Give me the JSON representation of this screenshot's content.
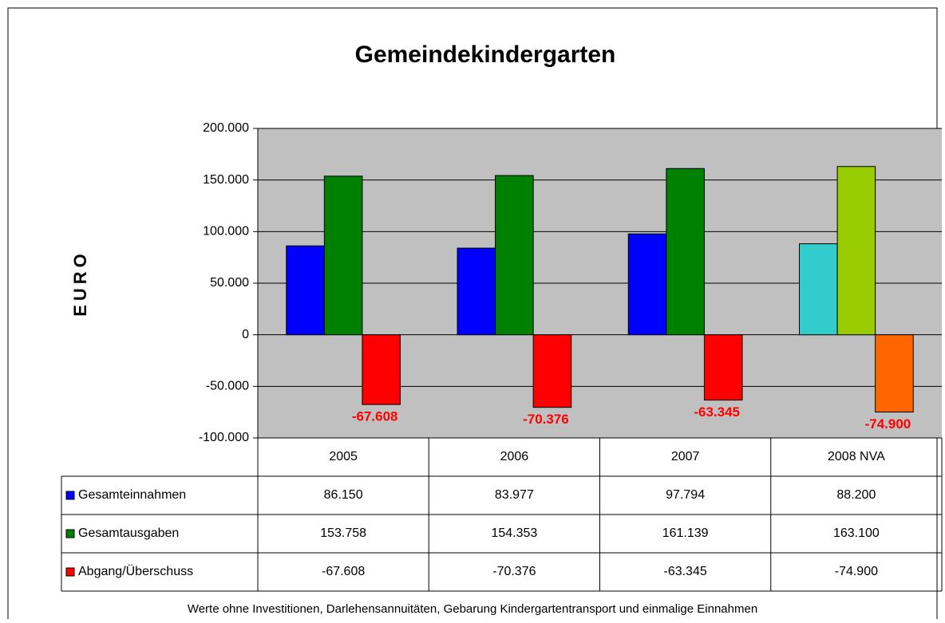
{
  "chart_data": {
    "type": "bar",
    "title": "Gemeindekindergarten",
    "y_label": "EURO",
    "footnote": "Werte ohne Investitionen, Darlehensannuitäten, Gebarung Kindergartentransport und einmalige Einnahmen",
    "categories": [
      "2005",
      "2006",
      "2007",
      "2008 NVA"
    ],
    "series": [
      {
        "name": "Gesamteinnahmen",
        "color": "#0000ff",
        "colors": [
          "#0000ff",
          "#0000ff",
          "#0000ff",
          "#33cccc"
        ],
        "values": [
          86150,
          83977,
          97794,
          88200
        ],
        "value_labels": [
          "86.150",
          "83.977",
          "97.794",
          "88.200"
        ]
      },
      {
        "name": "Gesamtausgaben",
        "color": "#008000",
        "colors": [
          "#008000",
          "#008000",
          "#008000",
          "#99cc00"
        ],
        "values": [
          153758,
          154353,
          161139,
          163100
        ],
        "value_labels": [
          "153.758",
          "154.353",
          "161.139",
          "163.100"
        ]
      },
      {
        "name": "Abgang/Überschuss",
        "color": "#ff0000",
        "colors": [
          "#ff0000",
          "#ff0000",
          "#ff0000",
          "#ff6600"
        ],
        "values": [
          -67608,
          -70376,
          -63345,
          -74900
        ],
        "value_labels": [
          "-67.608",
          "-70.376",
          "-63.345",
          "-74.900"
        ],
        "data_labels": true
      }
    ],
    "ylim": [
      -100000,
      200000
    ],
    "yticks": [
      {
        "value": -100000,
        "label": "-100.000"
      },
      {
        "value": -50000,
        "label": "-50.000"
      },
      0,
      {
        "value": 50000,
        "label": "50.000"
      },
      {
        "value": 100000,
        "label": "100.000"
      },
      {
        "value": 150000,
        "label": "150.000"
      },
      {
        "value": 200000,
        "label": "200.000"
      }
    ],
    "grid": true
  }
}
